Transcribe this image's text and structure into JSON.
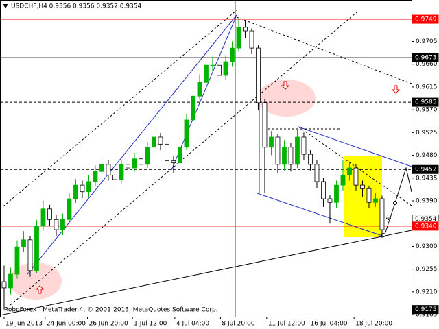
{
  "chart_data": {
    "type": "candlestick",
    "title": "USDCHF,H4 0.9356 0.9356 0.9352 0.9354",
    "copyright": "RoboForex - MetaTrader 4, © 2001-2013, MetaQuotes Software Corp.",
    "up_color": "#00b400",
    "down_color": "#ffffff",
    "grid": false,
    "open": [
      0.923,
      0.9218,
      0.9245,
      0.9299,
      0.9313,
      0.9252,
      0.934,
      0.9374,
      0.9353,
      0.9333,
      0.9353,
      0.9394,
      0.9421,
      0.9408,
      0.9428,
      0.9448,
      0.9462,
      0.9441,
      0.9432,
      0.9462,
      0.9455,
      0.9473,
      0.9462,
      0.9496,
      0.9516,
      0.9502,
      0.9469,
      0.9465,
      0.9496,
      0.955,
      0.9597,
      0.9624,
      0.9658,
      0.9658,
      0.9638,
      0.9665,
      0.9692,
      0.9733,
      0.9726,
      0.9692,
      0.9584,
      0.9496,
      0.9516,
      0.9462,
      0.9496,
      0.9462,
      0.9516,
      0.9482,
      0.9462,
      0.9428,
      0.9394,
      0.9387,
      0.9421,
      0.9441,
      0.9455,
      0.9421,
      0.9414,
      0.9387,
      0.9394,
      0.9356
    ],
    "high": [
      0.9262,
      0.9258,
      0.9312,
      0.933,
      0.9321,
      0.9352,
      0.939,
      0.9382,
      0.9362,
      0.9365,
      0.9405,
      0.9433,
      0.943,
      0.944,
      0.946,
      0.9475,
      0.947,
      0.9452,
      0.9471,
      0.9474,
      0.9485,
      0.948,
      0.9506,
      0.953,
      0.9524,
      0.951,
      0.9478,
      0.9505,
      0.9562,
      0.9608,
      0.964,
      0.9672,
      0.9675,
      0.9665,
      0.9678,
      0.9705,
      0.9749,
      0.9745,
      0.9731,
      0.9698,
      0.9592,
      0.9528,
      0.9522,
      0.951,
      0.9505,
      0.953,
      0.9525,
      0.949,
      0.947,
      0.9435,
      0.9402,
      0.943,
      0.947,
      0.9468,
      0.9462,
      0.943,
      0.942,
      0.9405,
      0.94,
      0.9356
    ],
    "low": [
      0.9175,
      0.9205,
      0.9236,
      0.9288,
      0.924,
      0.9247,
      0.9331,
      0.9341,
      0.932,
      0.9322,
      0.9345,
      0.9386,
      0.9395,
      0.9398,
      0.9419,
      0.944,
      0.943,
      0.9418,
      0.9425,
      0.9444,
      0.9447,
      0.945,
      0.9455,
      0.9488,
      0.949,
      0.9458,
      0.9445,
      0.9458,
      0.949,
      0.9542,
      0.959,
      0.9615,
      0.9645,
      0.9625,
      0.963,
      0.9655,
      0.9685,
      0.9712,
      0.968,
      0.957,
      0.9405,
      0.948,
      0.9445,
      0.945,
      0.9448,
      0.9455,
      0.947,
      0.945,
      0.9415,
      0.9378,
      0.9345,
      0.9375,
      0.941,
      0.943,
      0.941,
      0.9398,
      0.9375,
      0.9378,
      0.9317,
      0.9352
    ],
    "close": [
      0.9218,
      0.9245,
      0.9299,
      0.9313,
      0.9252,
      0.934,
      0.9374,
      0.9353,
      0.9333,
      0.9353,
      0.9394,
      0.9421,
      0.9408,
      0.9428,
      0.9448,
      0.9462,
      0.9441,
      0.9432,
      0.9462,
      0.9455,
      0.9473,
      0.9462,
      0.9496,
      0.9516,
      0.9502,
      0.9469,
      0.9465,
      0.9496,
      0.955,
      0.9597,
      0.9624,
      0.9658,
      0.9658,
      0.9638,
      0.9665,
      0.9692,
      0.9733,
      0.9726,
      0.9692,
      0.9584,
      0.9496,
      0.9516,
      0.9462,
      0.9496,
      0.9462,
      0.9516,
      0.9482,
      0.9462,
      0.9428,
      0.9394,
      0.9387,
      0.9421,
      0.9441,
      0.9455,
      0.9421,
      0.9414,
      0.9387,
      0.9394,
      0.9333,
      0.9354
    ],
    "xlim": [
      -0.63,
      62.53
    ],
    "xticks": [
      {
        "value": 0,
        "label": "19 Jun 2013"
      },
      {
        "value": 6.3,
        "label": "24 Jun 00:00"
      },
      {
        "value": 12.8,
        "label": "26 Jun 20:00"
      },
      {
        "value": 19.7,
        "label": "1 Jul 12:00"
      },
      {
        "value": 26.2,
        "label": "4 Jul 04:00"
      },
      {
        "value": 33.2,
        "label": "8 Jul 20:00"
      },
      {
        "value": 40.3,
        "label": "11 Jul 12:00"
      },
      {
        "value": 46.8,
        "label": "16 Jul 04:00"
      },
      {
        "value": 53.7,
        "label": "18 Jul 20:00"
      }
    ],
    "ylim": [
      0.9161,
      0.9787
    ],
    "yticks": [
      0.9705,
      {
        "value": 0.966,
        "label": "0.9660"
      },
      0.9615,
      {
        "value": 0.957,
        "label": "0.9570"
      },
      0.9525,
      {
        "value": 0.948,
        "label": "0.9480"
      },
      0.9435,
      {
        "value": 0.939,
        "label": "0.9390"
      },
      {
        "value": 0.93,
        "label": "0.9300"
      },
      0.9255,
      {
        "value": 0.921,
        "label": "0.9210"
      },
      0.9165
    ],
    "levels": [
      {
        "value": 0.9749,
        "color": "#ff0000",
        "style": "solid"
      },
      {
        "value": 0.9673,
        "color": "#000000",
        "style": "solid"
      },
      {
        "value": 0.9585,
        "color": "#000000",
        "style": "dashed"
      },
      {
        "value": 0.9452,
        "color": "#000000",
        "style": "dashed"
      },
      {
        "value": 0.9354,
        "color": "#ffffff",
        "style": "none"
      },
      {
        "value": 0.934,
        "label": "0.9340",
        "color": "#ff0000",
        "style": "solid"
      },
      {
        "value": 0.9175,
        "color": "#000000",
        "style": "none"
      }
    ]
  }
}
